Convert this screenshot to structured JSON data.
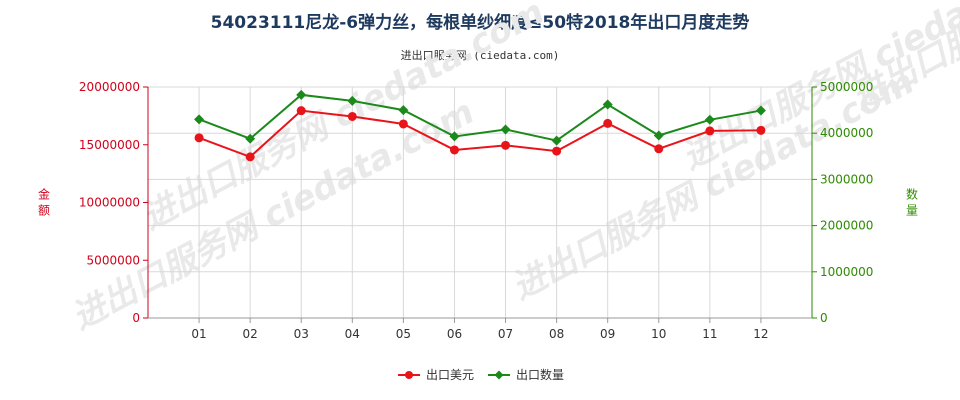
{
  "header": {
    "title": "54023111尼龙-6弹力丝，每根单纱细度≤50特2018年出口月度走势",
    "subtitle": "进出口服务网 (ciedata.com)"
  },
  "watermark": "进出口服务网 ciedata.com",
  "colors": {
    "series_amount": "#e8141a",
    "series_quantity": "#1b8a1b",
    "left_axis": "#d0021b",
    "right_axis": "#2e8b00",
    "grid": "#d8d8d8"
  },
  "chart_data": {
    "type": "line",
    "categories": [
      "01",
      "02",
      "03",
      "04",
      "05",
      "06",
      "07",
      "08",
      "09",
      "10",
      "11",
      "12"
    ],
    "series": [
      {
        "name": "出口美元",
        "axis": "left",
        "values": [
          15600000,
          13950000,
          17950000,
          17450000,
          16800000,
          14550000,
          14950000,
          14450000,
          16850000,
          14650000,
          16200000,
          16250000
        ]
      },
      {
        "name": "出口数量",
        "axis": "right",
        "values": [
          4300000,
          3880000,
          4830000,
          4700000,
          4500000,
          3930000,
          4080000,
          3840000,
          4620000,
          3950000,
          4290000,
          4490000
        ]
      }
    ],
    "ylabel_left": "金额",
    "ylabel_right": "数量",
    "ylim_left": [
      0,
      20000000
    ],
    "ylim_right": [
      0,
      5000000
    ],
    "yticks_left": [
      "0",
      "5000000",
      "10000000",
      "15000000",
      "20000000"
    ],
    "yticks_right": [
      "0",
      "1000000",
      "2000000",
      "3000000",
      "4000000",
      "5000000"
    ],
    "grid": true,
    "legend_position": "bottom"
  }
}
